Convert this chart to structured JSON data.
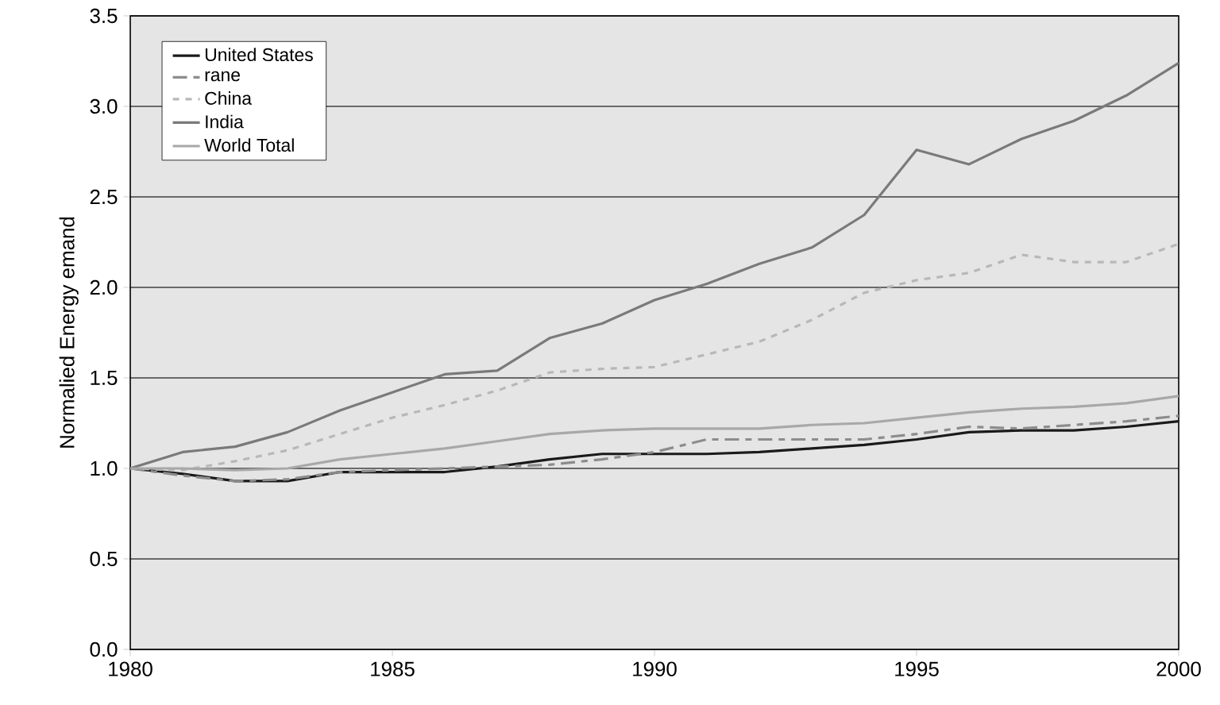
{
  "chart_data": {
    "type": "line",
    "ylabel": "Normalied  Energy emand",
    "x": [
      1980,
      1981,
      1982,
      1983,
      1984,
      1985,
      1986,
      1987,
      1988,
      1989,
      1990,
      1991,
      1992,
      1993,
      1994,
      1995,
      1996,
      1997,
      1998,
      1999,
      2000
    ],
    "series": [
      {
        "name": "United States",
        "color": "#1a1a1a",
        "line_style": "solid",
        "values": [
          1.0,
          0.97,
          0.93,
          0.93,
          0.98,
          0.98,
          0.98,
          1.01,
          1.05,
          1.08,
          1.08,
          1.08,
          1.09,
          1.11,
          1.13,
          1.16,
          1.2,
          1.21,
          1.21,
          1.23,
          1.26
        ]
      },
      {
        "name": "rane",
        "color": "#8c8c8c",
        "line_style": "dashed",
        "values": [
          1.0,
          0.96,
          0.93,
          0.94,
          0.98,
          0.99,
          1.0,
          1.01,
          1.02,
          1.05,
          1.09,
          1.16,
          1.16,
          1.16,
          1.16,
          1.19,
          1.23,
          1.22,
          1.24,
          1.26,
          1.29
        ]
      },
      {
        "name": "China",
        "color": "#b8b8b8",
        "line_style": "dotted",
        "values": [
          1.0,
          0.99,
          1.04,
          1.1,
          1.19,
          1.28,
          1.35,
          1.43,
          1.53,
          1.55,
          1.56,
          1.63,
          1.7,
          1.82,
          1.97,
          2.04,
          2.08,
          2.18,
          2.14,
          2.14,
          2.24
        ]
      },
      {
        "name": "India",
        "color": "#7a7a7a",
        "line_style": "solid",
        "values": [
          1.0,
          1.09,
          1.12,
          1.2,
          1.32,
          1.42,
          1.52,
          1.54,
          1.72,
          1.8,
          1.93,
          2.02,
          2.13,
          2.22,
          2.4,
          2.76,
          2.68,
          2.82,
          2.92,
          3.06,
          3.24
        ]
      },
      {
        "name": "World Total",
        "color": "#a8a8a8",
        "line_style": "solid",
        "values": [
          1.0,
          1.0,
          0.99,
          1.0,
          1.05,
          1.08,
          1.11,
          1.15,
          1.19,
          1.21,
          1.22,
          1.22,
          1.22,
          1.24,
          1.25,
          1.28,
          1.31,
          1.33,
          1.34,
          1.36,
          1.4
        ]
      }
    ],
    "xlim": [
      1980,
      2000
    ],
    "xticks": [
      1980,
      1985,
      1990,
      1995,
      2000
    ],
    "ylim": [
      0,
      3.5
    ],
    "yticks": [
      {
        "value": 0,
        "label": "0.0"
      },
      {
        "value": 0.5,
        "label": "0.5"
      },
      {
        "value": 1,
        "label": "1.0"
      },
      {
        "value": 1.5,
        "label": "1.5"
      },
      {
        "value": 2,
        "label": "2.0"
      },
      {
        "value": 2.5,
        "label": "2.5"
      },
      {
        "value": 3,
        "label": "3.0"
      },
      {
        "value": 3.5,
        "label": "3.5"
      }
    ],
    "grid": "y",
    "legend": "top left",
    "marker": "none"
  }
}
